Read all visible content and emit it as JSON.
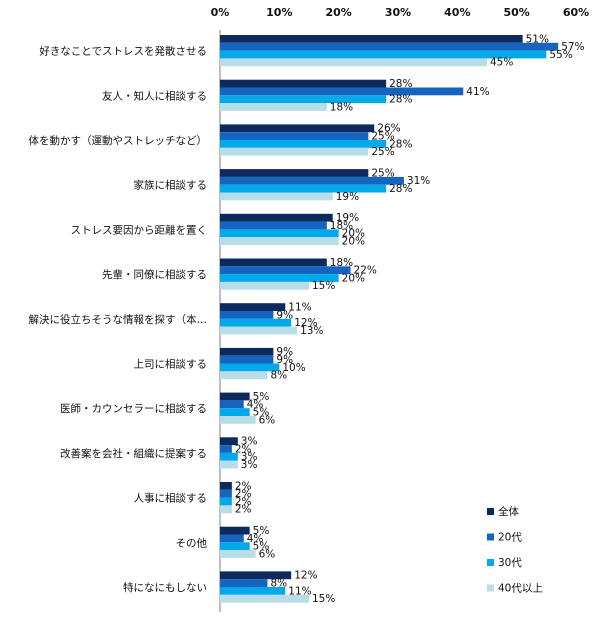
{
  "chart_data": {
    "type": "bar",
    "orientation": "horizontal",
    "xlim": [
      0,
      60
    ],
    "x_ticks": [
      "0%",
      "10%",
      "20%",
      "30%",
      "40%",
      "50%",
      "60%"
    ],
    "x_tick_values": [
      0,
      10,
      20,
      30,
      40,
      50,
      60
    ],
    "value_suffix": "%",
    "grid": false,
    "legend_position": "bottom-right",
    "categories": [
      "好きなことでストレスを発散させる",
      "友人・知人に相談する",
      "体を動かす（運動やストレッチなど）",
      "家族に相談する",
      "ストレス要因から距離を置く",
      "先輩・同僚に相談する",
      "解決に役立ちそうな情報を探す（本…",
      "上司に相談する",
      "医師・カウンセラーに相談する",
      "改善案を会社・組織に提案する",
      "人事に相談する",
      "その他",
      "特になにもしない"
    ],
    "series": [
      {
        "name": "全体",
        "color": "#0d2a5e",
        "values": [
          51,
          28,
          26,
          25,
          19,
          18,
          11,
          9,
          5,
          3,
          2,
          5,
          12
        ]
      },
      {
        "name": "20代",
        "color": "#1565c0",
        "values": [
          57,
          41,
          25,
          31,
          18,
          22,
          9,
          9,
          4,
          2,
          2,
          4,
          8
        ]
      },
      {
        "name": "30代",
        "color": "#00a9ea",
        "values": [
          55,
          28,
          28,
          28,
          20,
          20,
          12,
          10,
          5,
          3,
          2,
          5,
          11
        ]
      },
      {
        "name": "40代以上",
        "color": "#b8dde9",
        "values": [
          45,
          18,
          25,
          19,
          20,
          15,
          13,
          8,
          6,
          3,
          2,
          6,
          15
        ]
      }
    ]
  }
}
